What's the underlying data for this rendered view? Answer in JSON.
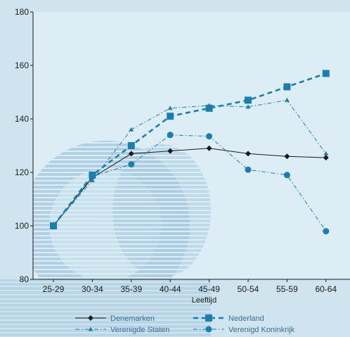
{
  "chart_data": {
    "type": "line",
    "categories": [
      "25-29",
      "30-34",
      "35-39",
      "40-44",
      "45-49",
      "50-54",
      "55-59",
      "60-64"
    ],
    "xlabel": "Leeftijd",
    "ylabel": "",
    "ylim": [
      80,
      180
    ],
    "yticks": [
      80,
      100,
      120,
      140,
      160,
      180
    ],
    "grid": false,
    "legend_position": "bottom",
    "series": [
      {
        "name": "Denemarken",
        "values": [
          100,
          118,
          127,
          128,
          129,
          127,
          126,
          125.5
        ],
        "color": "#1a1a1a",
        "marker": "diamond",
        "style": "solid"
      },
      {
        "name": "Nederland",
        "values": [
          100,
          119,
          130,
          141,
          144,
          147,
          152,
          157
        ],
        "color": "#1a7fb0",
        "marker": "square",
        "style": "dashed"
      },
      {
        "name": "Verenigde Staten",
        "values": [
          100,
          117,
          136,
          144,
          145,
          144.5,
          147,
          127
        ],
        "color": "#1a7fb0",
        "marker": "triangle",
        "style": "dash-dot"
      },
      {
        "name": "Verenigd Koninkrijk",
        "values": [
          100,
          118.5,
          123,
          134,
          133.5,
          121,
          119,
          98
        ],
        "color": "#1a7fb0",
        "marker": "circle",
        "style": "dash-dot"
      }
    ]
  }
}
